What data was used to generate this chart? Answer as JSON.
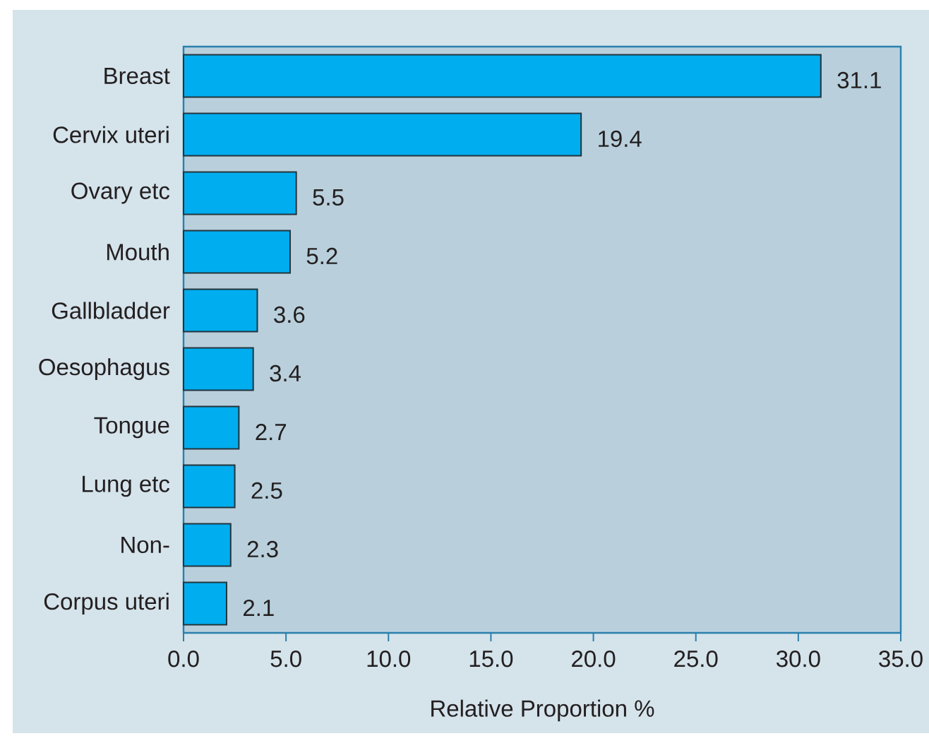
{
  "chart_data": {
    "type": "bar",
    "orientation": "horizontal",
    "categories": [
      "Breast",
      "Cervix uteri",
      "Ovary etc",
      "Mouth",
      "Gallbladder",
      "Oesophagus",
      "Tongue",
      "Lung etc",
      "Non-",
      "Corpus uteri"
    ],
    "values": [
      31.1,
      19.4,
      5.5,
      5.2,
      3.6,
      3.4,
      2.7,
      2.5,
      2.3,
      2.1
    ],
    "color": "#00adef",
    "xlabel": "Relative Proportion %",
    "xlim": [
      0,
      35
    ],
    "xticks": [
      {
        "value": 0,
        "label": "0.0"
      },
      {
        "value": 5,
        "label": "5.0"
      },
      {
        "value": 10,
        "label": "10.0"
      },
      {
        "value": 15,
        "label": "15.0"
      },
      {
        "value": 20,
        "label": "20.0"
      },
      {
        "value": 25,
        "label": "25.0"
      },
      {
        "value": 30,
        "label": "30.0"
      },
      {
        "value": 35,
        "label": "35.0"
      }
    ],
    "data_labels": true
  }
}
